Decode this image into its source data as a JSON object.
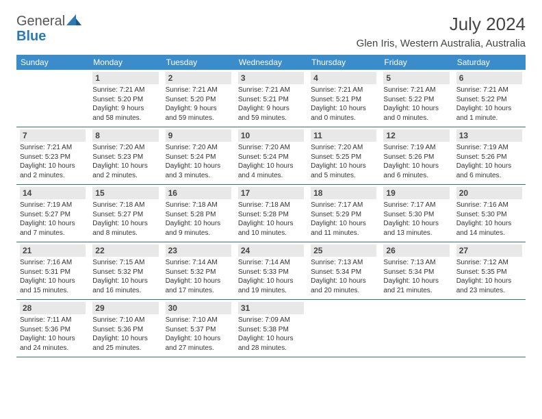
{
  "logo": {
    "part1": "General",
    "part2": "Blue"
  },
  "title": "July 2024",
  "location": "Glen Iris, Western Australia, Australia",
  "colors": {
    "header_bg": "#3b8cca",
    "header_text": "#ffffff",
    "daynum_bg": "#e8e8e8",
    "daynum_text": "#444444",
    "border": "#2a6fa8",
    "logo_gray": "#555555",
    "logo_blue": "#2a7ab8",
    "body_text": "#333333"
  },
  "fonts": {
    "family": "Arial",
    "title_size": 26,
    "location_size": 15,
    "dayhead_size": 12,
    "daynum_size": 12,
    "event_size": 10
  },
  "day_headers": [
    "Sunday",
    "Monday",
    "Tuesday",
    "Wednesday",
    "Thursday",
    "Friday",
    "Saturday"
  ],
  "weeks": [
    [
      {
        "num": "",
        "sun": "",
        "set": "",
        "day1": "",
        "day2": ""
      },
      {
        "num": "1",
        "sun": "Sunrise: 7:21 AM",
        "set": "Sunset: 5:20 PM",
        "day1": "Daylight: 9 hours",
        "day2": "and 58 minutes."
      },
      {
        "num": "2",
        "sun": "Sunrise: 7:21 AM",
        "set": "Sunset: 5:20 PM",
        "day1": "Daylight: 9 hours",
        "day2": "and 59 minutes."
      },
      {
        "num": "3",
        "sun": "Sunrise: 7:21 AM",
        "set": "Sunset: 5:21 PM",
        "day1": "Daylight: 9 hours",
        "day2": "and 59 minutes."
      },
      {
        "num": "4",
        "sun": "Sunrise: 7:21 AM",
        "set": "Sunset: 5:21 PM",
        "day1": "Daylight: 10 hours",
        "day2": "and 0 minutes."
      },
      {
        "num": "5",
        "sun": "Sunrise: 7:21 AM",
        "set": "Sunset: 5:22 PM",
        "day1": "Daylight: 10 hours",
        "day2": "and 0 minutes."
      },
      {
        "num": "6",
        "sun": "Sunrise: 7:21 AM",
        "set": "Sunset: 5:22 PM",
        "day1": "Daylight: 10 hours",
        "day2": "and 1 minute."
      }
    ],
    [
      {
        "num": "7",
        "sun": "Sunrise: 7:21 AM",
        "set": "Sunset: 5:23 PM",
        "day1": "Daylight: 10 hours",
        "day2": "and 2 minutes."
      },
      {
        "num": "8",
        "sun": "Sunrise: 7:20 AM",
        "set": "Sunset: 5:23 PM",
        "day1": "Daylight: 10 hours",
        "day2": "and 2 minutes."
      },
      {
        "num": "9",
        "sun": "Sunrise: 7:20 AM",
        "set": "Sunset: 5:24 PM",
        "day1": "Daylight: 10 hours",
        "day2": "and 3 minutes."
      },
      {
        "num": "10",
        "sun": "Sunrise: 7:20 AM",
        "set": "Sunset: 5:24 PM",
        "day1": "Daylight: 10 hours",
        "day2": "and 4 minutes."
      },
      {
        "num": "11",
        "sun": "Sunrise: 7:20 AM",
        "set": "Sunset: 5:25 PM",
        "day1": "Daylight: 10 hours",
        "day2": "and 5 minutes."
      },
      {
        "num": "12",
        "sun": "Sunrise: 7:19 AM",
        "set": "Sunset: 5:26 PM",
        "day1": "Daylight: 10 hours",
        "day2": "and 6 minutes."
      },
      {
        "num": "13",
        "sun": "Sunrise: 7:19 AM",
        "set": "Sunset: 5:26 PM",
        "day1": "Daylight: 10 hours",
        "day2": "and 6 minutes."
      }
    ],
    [
      {
        "num": "14",
        "sun": "Sunrise: 7:19 AM",
        "set": "Sunset: 5:27 PM",
        "day1": "Daylight: 10 hours",
        "day2": "and 7 minutes."
      },
      {
        "num": "15",
        "sun": "Sunrise: 7:18 AM",
        "set": "Sunset: 5:27 PM",
        "day1": "Daylight: 10 hours",
        "day2": "and 8 minutes."
      },
      {
        "num": "16",
        "sun": "Sunrise: 7:18 AM",
        "set": "Sunset: 5:28 PM",
        "day1": "Daylight: 10 hours",
        "day2": "and 9 minutes."
      },
      {
        "num": "17",
        "sun": "Sunrise: 7:18 AM",
        "set": "Sunset: 5:28 PM",
        "day1": "Daylight: 10 hours",
        "day2": "and 10 minutes."
      },
      {
        "num": "18",
        "sun": "Sunrise: 7:17 AM",
        "set": "Sunset: 5:29 PM",
        "day1": "Daylight: 10 hours",
        "day2": "and 11 minutes."
      },
      {
        "num": "19",
        "sun": "Sunrise: 7:17 AM",
        "set": "Sunset: 5:30 PM",
        "day1": "Daylight: 10 hours",
        "day2": "and 13 minutes."
      },
      {
        "num": "20",
        "sun": "Sunrise: 7:16 AM",
        "set": "Sunset: 5:30 PM",
        "day1": "Daylight: 10 hours",
        "day2": "and 14 minutes."
      }
    ],
    [
      {
        "num": "21",
        "sun": "Sunrise: 7:16 AM",
        "set": "Sunset: 5:31 PM",
        "day1": "Daylight: 10 hours",
        "day2": "and 15 minutes."
      },
      {
        "num": "22",
        "sun": "Sunrise: 7:15 AM",
        "set": "Sunset: 5:32 PM",
        "day1": "Daylight: 10 hours",
        "day2": "and 16 minutes."
      },
      {
        "num": "23",
        "sun": "Sunrise: 7:14 AM",
        "set": "Sunset: 5:32 PM",
        "day1": "Daylight: 10 hours",
        "day2": "and 17 minutes."
      },
      {
        "num": "24",
        "sun": "Sunrise: 7:14 AM",
        "set": "Sunset: 5:33 PM",
        "day1": "Daylight: 10 hours",
        "day2": "and 19 minutes."
      },
      {
        "num": "25",
        "sun": "Sunrise: 7:13 AM",
        "set": "Sunset: 5:34 PM",
        "day1": "Daylight: 10 hours",
        "day2": "and 20 minutes."
      },
      {
        "num": "26",
        "sun": "Sunrise: 7:13 AM",
        "set": "Sunset: 5:34 PM",
        "day1": "Daylight: 10 hours",
        "day2": "and 21 minutes."
      },
      {
        "num": "27",
        "sun": "Sunrise: 7:12 AM",
        "set": "Sunset: 5:35 PM",
        "day1": "Daylight: 10 hours",
        "day2": "and 23 minutes."
      }
    ],
    [
      {
        "num": "28",
        "sun": "Sunrise: 7:11 AM",
        "set": "Sunset: 5:36 PM",
        "day1": "Daylight: 10 hours",
        "day2": "and 24 minutes."
      },
      {
        "num": "29",
        "sun": "Sunrise: 7:10 AM",
        "set": "Sunset: 5:36 PM",
        "day1": "Daylight: 10 hours",
        "day2": "and 25 minutes."
      },
      {
        "num": "30",
        "sun": "Sunrise: 7:10 AM",
        "set": "Sunset: 5:37 PM",
        "day1": "Daylight: 10 hours",
        "day2": "and 27 minutes."
      },
      {
        "num": "31",
        "sun": "Sunrise: 7:09 AM",
        "set": "Sunset: 5:38 PM",
        "day1": "Daylight: 10 hours",
        "day2": "and 28 minutes."
      },
      {
        "num": "",
        "sun": "",
        "set": "",
        "day1": "",
        "day2": ""
      },
      {
        "num": "",
        "sun": "",
        "set": "",
        "day1": "",
        "day2": ""
      },
      {
        "num": "",
        "sun": "",
        "set": "",
        "day1": "",
        "day2": ""
      }
    ]
  ]
}
